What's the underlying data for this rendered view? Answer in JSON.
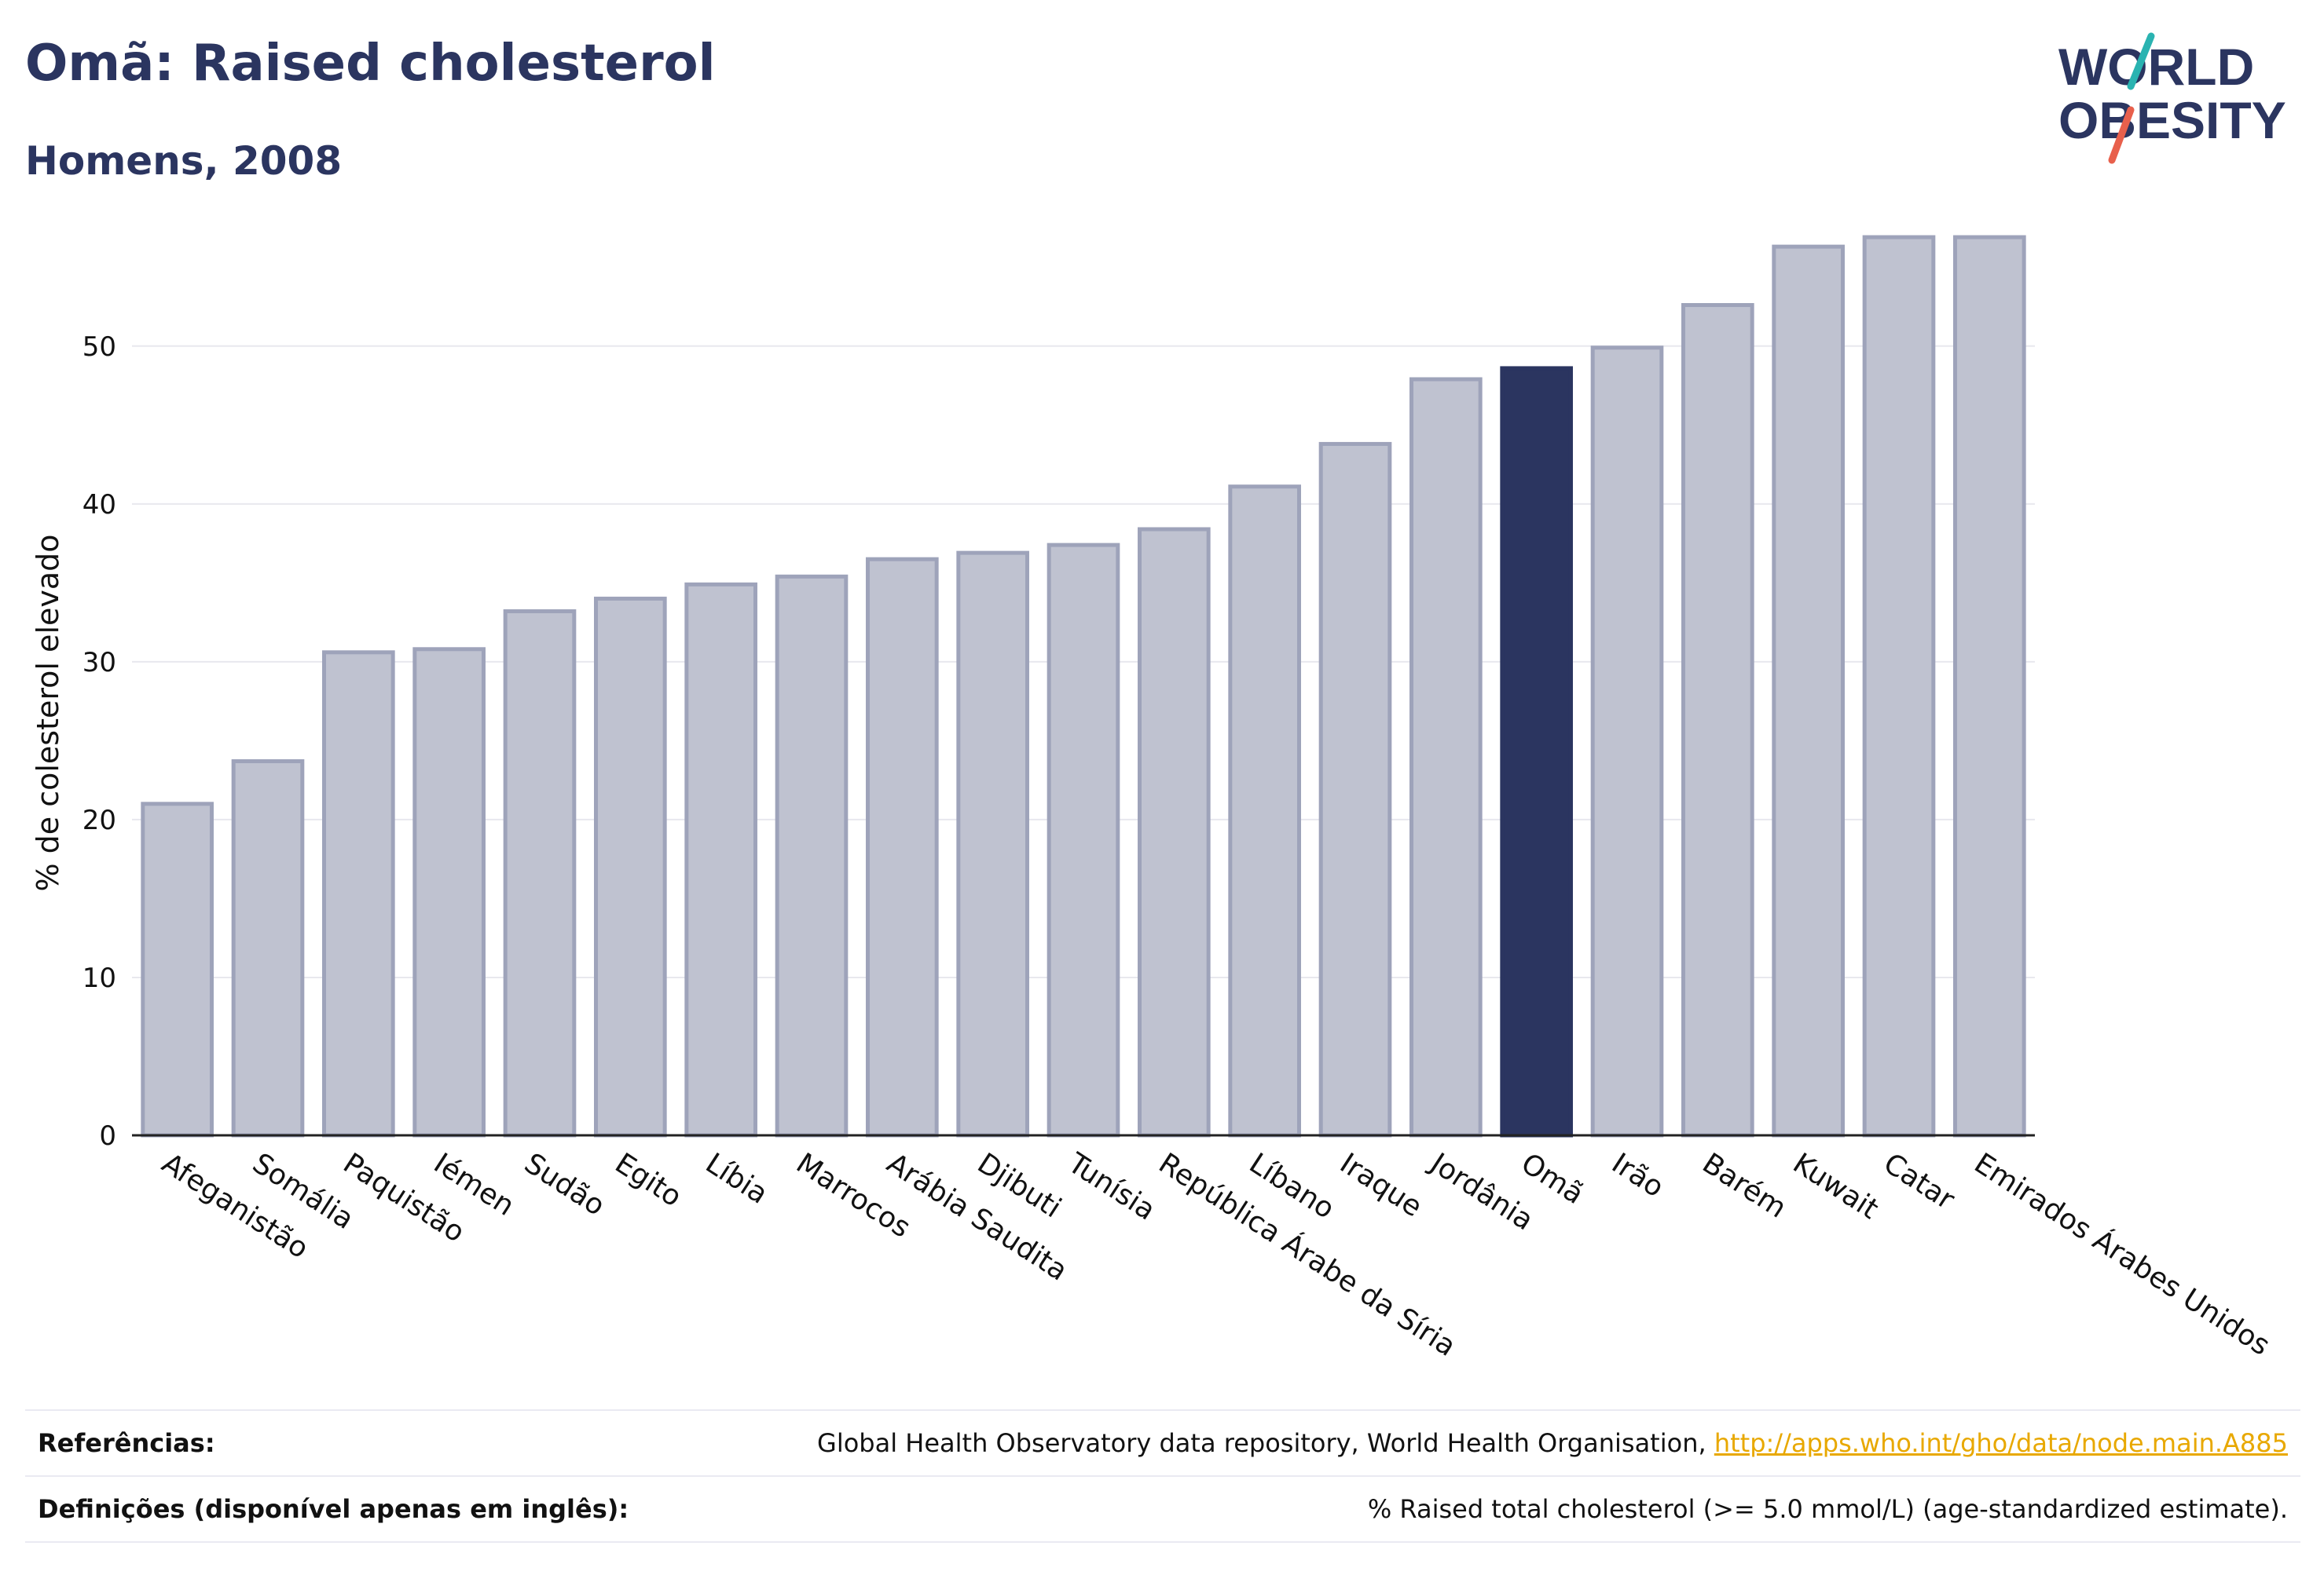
{
  "title": "Omã: Raised cholesterol",
  "subtitle": "Homens, 2008",
  "logo": {
    "line1": "WORLD",
    "line2": "OBESITY"
  },
  "colors": {
    "highlight": "#2b3560",
    "bar": "#bfc2d0",
    "bar_border": "#9ea3ba",
    "text": "#2b3560",
    "link": "#e8a800",
    "logo_teal": "#2ab3b1",
    "logo_red": "#e8604c"
  },
  "chart_data": {
    "type": "bar",
    "ylabel": "% de colesterol elevado",
    "ylim": [
      0,
      57.5
    ],
    "yticks": [
      0,
      10,
      20,
      30,
      40,
      50
    ],
    "highlight": "Omã",
    "categories": [
      "Afeganistão",
      "Somália",
      "Paquistão",
      "Iémen",
      "Sudão",
      "Egito",
      "Líbia",
      "Marrocos",
      "Arábia Saudita",
      "Djibuti",
      "Tunísia",
      "República Árabe da Síria",
      "Líbano",
      "Iraque",
      "Jordânia",
      "Omã",
      "Irão",
      "Barém",
      "Kuwait",
      "Catar",
      "Emirados Árabes Unidos"
    ],
    "values": [
      21.0,
      23.7,
      30.6,
      30.8,
      33.2,
      34.0,
      34.9,
      35.4,
      36.5,
      36.9,
      37.4,
      38.4,
      41.1,
      43.8,
      47.9,
      48.6,
      49.9,
      52.6,
      56.3,
      56.9,
      56.9
    ],
    "grid": true
  },
  "footer": {
    "references_label": "Referências:",
    "references_text": "Global Health Observatory data repository, World Health Organisation, ",
    "references_link": "http://apps.who.int/gho/data/node.main.A885",
    "definitions_label": "Definições (disponível apenas em inglês):",
    "definitions_text": "% Raised total cholesterol (>= 5.0 mmol/L) (age-standardized estimate)."
  }
}
